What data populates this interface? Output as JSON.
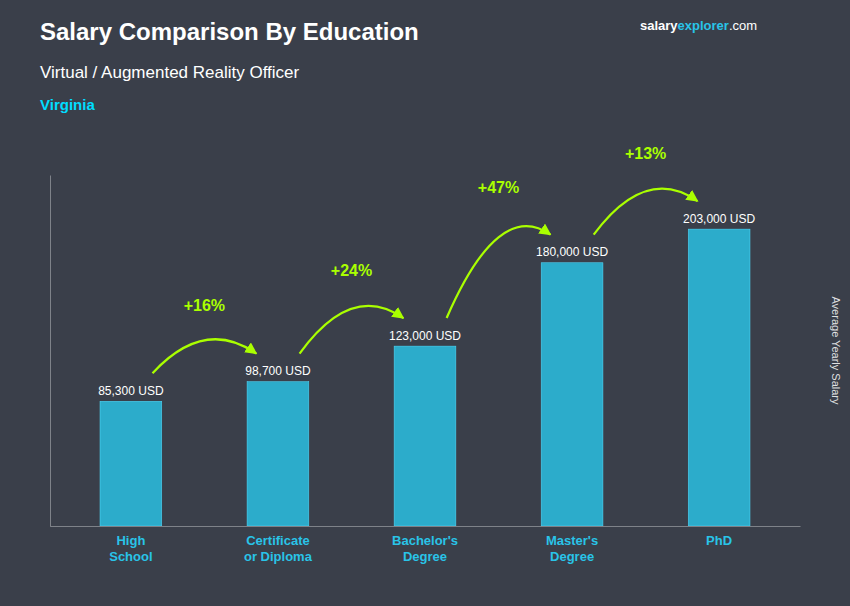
{
  "chart_data": {
    "type": "bar",
    "title": "Salary Comparison By Education",
    "subtitle": "Virtual / Augmented Reality Officer",
    "location": "Virginia",
    "brand": [
      "salary",
      "explorer",
      ".com"
    ],
    "ylabel": "Average Yearly Salary",
    "categories": [
      "High\nSchool",
      "Certificate\nor Diploma",
      "Bachelor's\nDegree",
      "Master's\nDegree",
      "PhD"
    ],
    "values": [
      85300,
      98700,
      123000,
      180000,
      203000
    ],
    "value_labels": [
      "85,300 USD",
      "98,700 USD",
      "123,000 USD",
      "180,000 USD",
      "203,000 USD"
    ],
    "data_labels": true,
    "annotations": [
      "+16%",
      "+24%",
      "+47%",
      "+13%"
    ],
    "color": "#29C4E8",
    "ylim": [
      0,
      240000
    ],
    "tick_labels": "x",
    "grid": false
  }
}
